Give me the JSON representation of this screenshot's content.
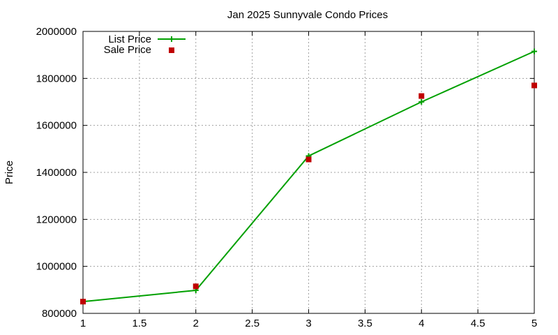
{
  "chart_data": {
    "type": "line",
    "title": "Jan 2025 Sunnyvale Condo Prices",
    "xlabel": "",
    "ylabel": "Price",
    "xlim": [
      1,
      5
    ],
    "ylim": [
      800000,
      2000000
    ],
    "xticks": [
      "1",
      "1.5",
      "2",
      "2.5",
      "3",
      "3.5",
      "4",
      "4.5",
      "5"
    ],
    "yticks": [
      "800000",
      "1000000",
      "1200000",
      "1400000",
      "1600000",
      "1800000",
      "2000000"
    ],
    "grid": true,
    "legend_position": "top-left",
    "series": [
      {
        "name": "List Price",
        "style": "line-with-plus-markers",
        "color": "#00a000",
        "x": [
          1,
          2,
          3,
          4,
          5
        ],
        "y": [
          850000,
          898000,
          1470000,
          1700000,
          1915000
        ]
      },
      {
        "name": "Sale Price",
        "style": "square-markers",
        "color": "#c00000",
        "x": [
          1,
          2,
          3,
          4,
          5
        ],
        "y": [
          850000,
          915000,
          1455000,
          1725000,
          1770000
        ]
      }
    ]
  }
}
